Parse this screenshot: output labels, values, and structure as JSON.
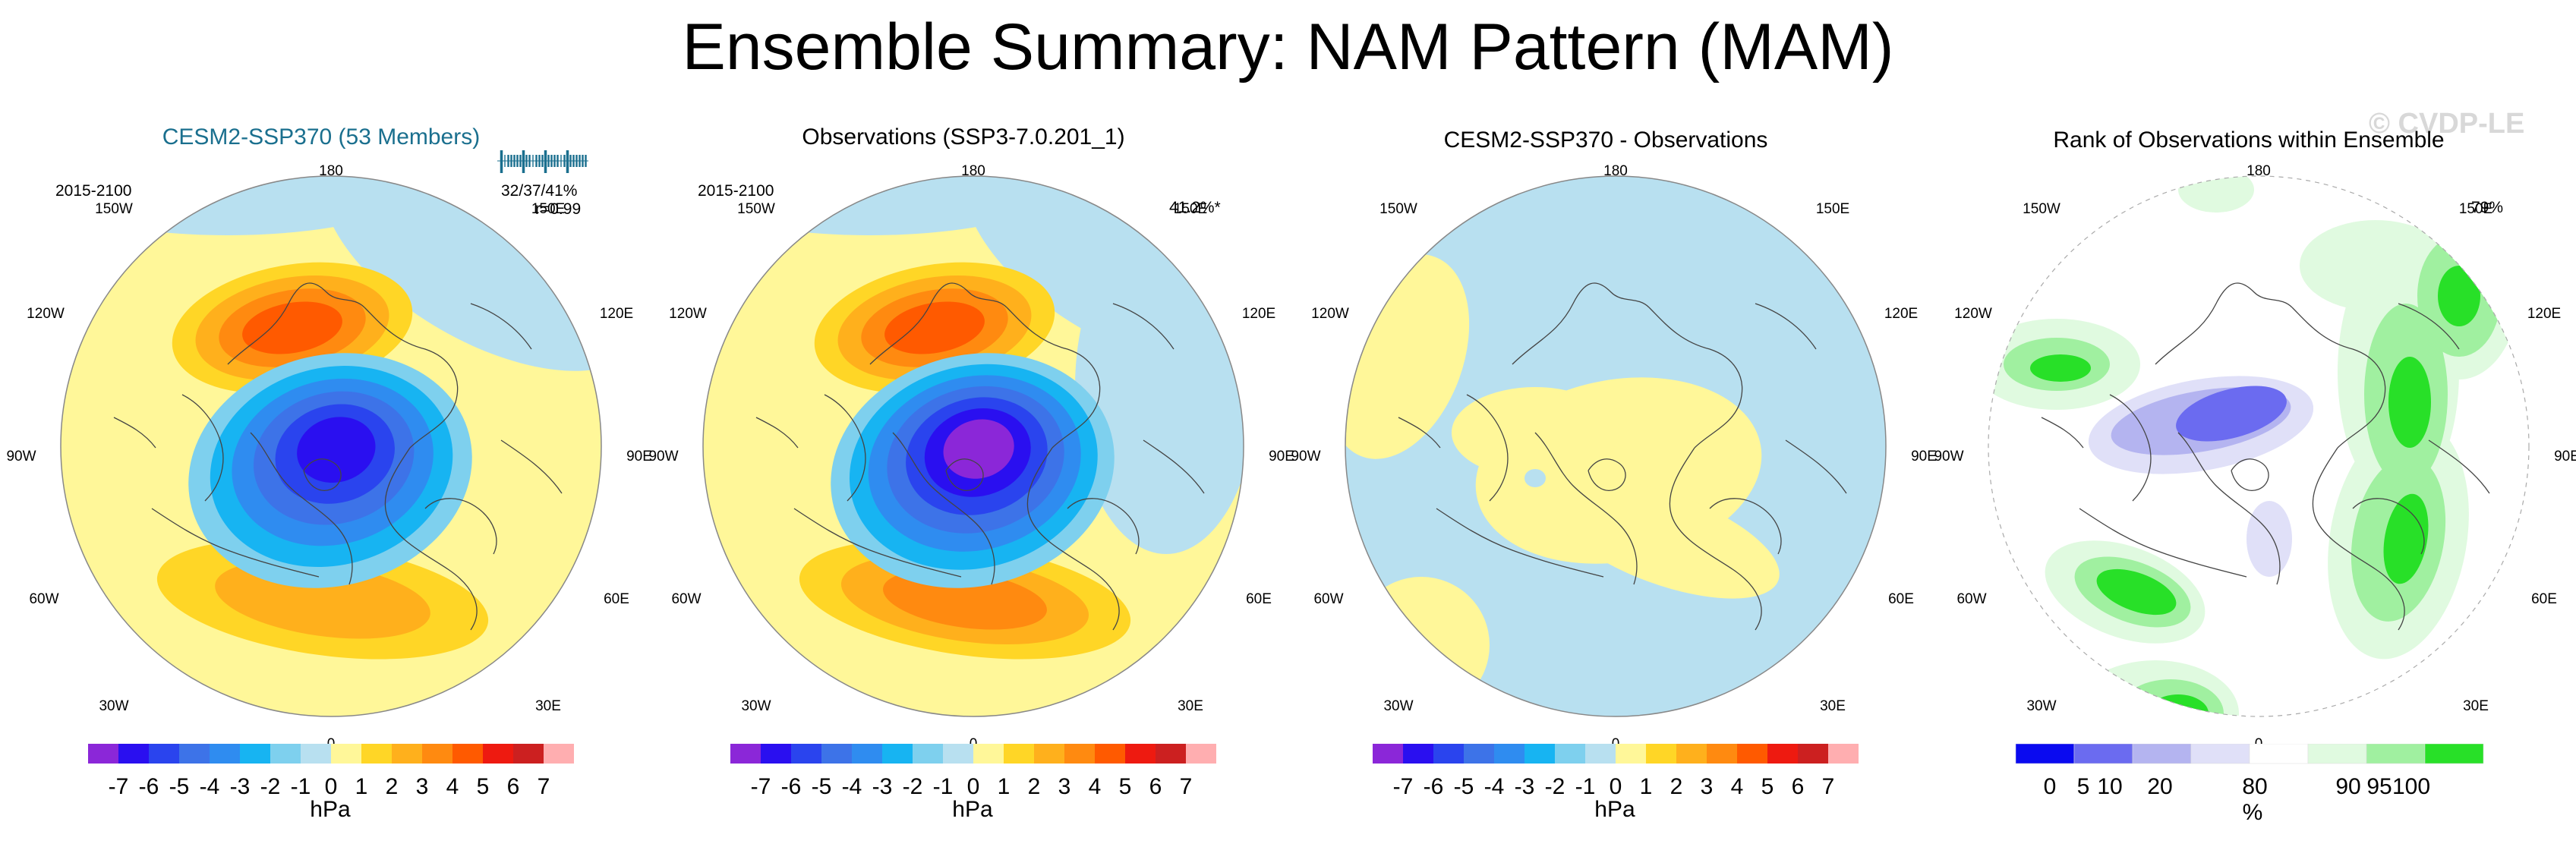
{
  "title": "Ensemble Summary: NAM Pattern (MAM)",
  "watermark": "© CVDP-LE",
  "colors": {
    "title_blue": "#1a6f8e",
    "land_outline": "#444444",
    "ocean_blue": "#b8e0f0",
    "neutral_yellow": "#fff799"
  },
  "lon_labels": [
    "180",
    "150W",
    "150E",
    "120W",
    "120E",
    "90W",
    "90E",
    "60W",
    "60E",
    "30W",
    "30E",
    "0"
  ],
  "panels": [
    {
      "title": "CESM2-SSP370 (53 Members)",
      "period": "2015-2100",
      "stats_line1": "32/37/41%",
      "stats_line2": "r=0.99",
      "units": "hPa"
    },
    {
      "title": "Observations (SSP3-7.0.201_1)",
      "period": "2015-2100",
      "corner_value": "41.2%*",
      "units": "hPa"
    },
    {
      "title": "CESM2-SSP370 - Observations",
      "units": "hPa"
    },
    {
      "title": "Rank of Observations within Ensemble",
      "corner_value": "79%",
      "units": "%"
    }
  ],
  "chart_data": [
    {
      "type": "heatmap",
      "title": "CESM2-SSP370 (53 Members)",
      "subtitle": "2015-2100",
      "projection": "polar stereographic, Northern Hemisphere",
      "field": "ensemble-mean NAM pattern, sea level pressure",
      "units": "hPa",
      "colorbar_levels": [
        -7,
        -6,
        -5,
        -4,
        -3,
        -2,
        -1,
        0,
        1,
        2,
        3,
        4,
        5,
        6,
        7
      ],
      "colorbar_tick_labels": [
        "-7",
        "-6",
        "-5",
        "-4",
        "-3",
        "-2",
        "-1",
        "0",
        "1",
        "2",
        "3",
        "4",
        "5",
        "6",
        "7"
      ],
      "colorbar_colors": [
        "#8b27d8",
        "#2a0ff0",
        "#2a44ee",
        "#3d73e8",
        "#2f8cf0",
        "#17b4f2",
        "#7ed0ee",
        "#b8e0f0",
        "#fff799",
        "#ffd626",
        "#ffb01c",
        "#ff8a10",
        "#ff5a00",
        "#ee1a10",
        "#cc2020",
        "#ffaeb0"
      ],
      "features": {
        "polar_low_min_hPa": -6,
        "pacific_high_max_hPa": 4,
        "atlantic_high_max_hPa": 2
      },
      "ensemble_pattern_correlation_strip": "32/37/41%",
      "pattern_correlation": 0.99
    },
    {
      "type": "heatmap",
      "title": "Observations (SSP3-7.0.201_1)",
      "subtitle": "2015-2100",
      "projection": "polar stereographic, Northern Hemisphere",
      "field": "observed NAM pattern, sea level pressure",
      "units": "hPa",
      "colorbar_levels": [
        -7,
        -6,
        -5,
        -4,
        -3,
        -2,
        -1,
        0,
        1,
        2,
        3,
        4,
        5,
        6,
        7
      ],
      "colorbar_tick_labels": [
        "-7",
        "-6",
        "-5",
        "-4",
        "-3",
        "-2",
        "-1",
        "0",
        "1",
        "2",
        "3",
        "4",
        "5",
        "6",
        "7"
      ],
      "features": {
        "polar_low_min_hPa": -7,
        "pacific_high_max_hPa": 4,
        "atlantic_high_max_hPa": 3
      },
      "explained_variance": "41.2%*"
    },
    {
      "type": "heatmap",
      "title": "CESM2-SSP370 - Observations",
      "projection": "polar stereographic, Northern Hemisphere",
      "field": "difference (model minus observations), sea level pressure",
      "units": "hPa",
      "colorbar_levels": [
        -7,
        -6,
        -5,
        -4,
        -3,
        -2,
        -1,
        0,
        1,
        2,
        3,
        4,
        5,
        6,
        7
      ],
      "colorbar_tick_labels": [
        "-7",
        "-6",
        "-5",
        "-4",
        "-3",
        "-2",
        "-1",
        "0",
        "1",
        "2",
        "3",
        "4",
        "5",
        "6",
        "7"
      ],
      "features": {
        "difference_range_hPa": [
          -1,
          1
        ]
      }
    },
    {
      "type": "heatmap",
      "title": "Rank of Observations within Ensemble",
      "projection": "polar stereographic, Northern Hemisphere",
      "field": "percentile rank of observations within ensemble",
      "units": "%",
      "colorbar_levels": [
        0,
        5,
        10,
        20,
        80,
        90,
        95,
        100
      ],
      "colorbar_tick_labels": [
        "0",
        "5",
        "10",
        "20",
        "80",
        "90",
        "95",
        "100"
      ],
      "colorbar_colors": [
        "#0a0af0",
        "#6b6bf0",
        "#b4b4f0",
        "#e0e0f8",
        "#ffffff",
        "#e0fae0",
        "#a0f0a0",
        "#28e028"
      ],
      "area_within_ensemble_spread": "79%"
    }
  ]
}
